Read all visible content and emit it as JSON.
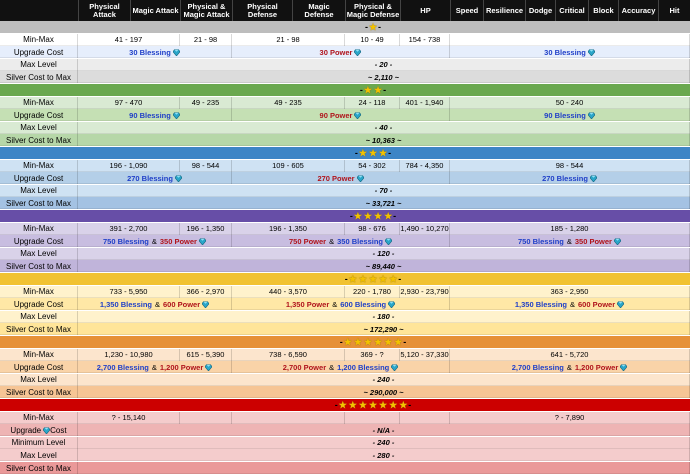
{
  "header": {
    "blank": "",
    "columns": [
      "Physical Attack",
      "Magic Attack",
      "Physical & Magic Attack",
      "Physical Defense",
      "Magic Defense",
      "Physical & Magic Defense",
      "HP",
      "Speed",
      "Resilience",
      "Dodge",
      "Critical",
      "Block",
      "Accuracy",
      "Hit"
    ]
  },
  "labels": {
    "min_max": "Min-Max",
    "upgrade_cost": "Upgrade Cost",
    "max_level": "Max Level",
    "silver_cost": "Silver Cost to Max",
    "minimum_level": "Minimum Level",
    "upgrade": "Upgrade",
    "cost": "Cost"
  },
  "colors": {
    "gray": "#bdbdbd",
    "green": "#6aa84f",
    "blue": "#3d85c6",
    "purple": "#674ea7",
    "gold": "#f1c232",
    "orange": "#e69138",
    "red": "#cc0000"
  },
  "tiers": [
    {
      "stars": 1,
      "left": "-",
      "right": "-",
      "min_max": [
        "41 - 197",
        "21 - 98",
        "21 - 98",
        "10 - 49",
        "154 - 738"
      ],
      "upgrade": [
        "30 Blessing",
        "30 Power",
        "30 Blessing"
      ],
      "max_level": "- 20 -",
      "silver": "~ 2,110 ~"
    },
    {
      "stars": 2,
      "left": "-",
      "right": "-",
      "min_max": [
        "97 - 470",
        "49 - 235",
        "49 - 235",
        "24 - 118",
        "401 - 1,940",
        "50 - 240"
      ],
      "upgrade": [
        "90 Blessing",
        "90 Power",
        "90 Blessing"
      ],
      "max_level": "- 40 -",
      "silver": "~ 10,363 ~"
    },
    {
      "stars": 3,
      "left": "-",
      "right": "-",
      "min_max": [
        "196 - 1,090",
        "98 - 544",
        "109 - 605",
        "54 - 302",
        "784 - 4,350",
        "98 - 544"
      ],
      "upgrade": [
        "270 Blessing",
        "270 Power",
        "270 Blessing"
      ],
      "max_level": "- 70 -",
      "silver": "~ 33,721 ~"
    },
    {
      "stars": 4,
      "left": "-",
      "right": "-",
      "min_max": [
        "391 - 2,700",
        "196 - 1,350",
        "196 - 1,350",
        "98 - 676",
        "1,490 - 10,270",
        "185 - 1,280"
      ],
      "upgrade": [
        [
          "750 Blessing",
          "&",
          "350 Power"
        ],
        [
          "750 Power",
          "&",
          "350 Blessing"
        ],
        [
          "750 Blessing",
          "&",
          "350 Power"
        ]
      ],
      "max_level": "- 120 -",
      "silver": "~ 89,440 ~"
    },
    {
      "stars": 5,
      "left": "-",
      "right": "-",
      "min_max": [
        "733 - 5,950",
        "366 - 2,970",
        "440 - 3,570",
        "220 - 1,780",
        "2,930 - 23,790",
        "363 - 2,950"
      ],
      "upgrade": [
        [
          "1,350 Blessing",
          "&",
          "600 Power"
        ],
        [
          "1,350 Power",
          "&",
          "600 Blessing"
        ],
        [
          "1,350 Blessing",
          "&",
          "600 Power"
        ]
      ],
      "max_level": "- 180 -",
      "silver": "~ 172,290 ~"
    },
    {
      "stars": 6,
      "left": "-",
      "right": "-",
      "min_max": [
        "1,230 - 10,980",
        "615 - 5,390",
        "738 - 6,590",
        "369 - ?",
        "5,120 - 37,330",
        "641 - 5,720"
      ],
      "upgrade": [
        [
          "2,700 Blessing",
          "&",
          "1,200 Power"
        ],
        [
          "2,700 Power",
          "&",
          "1,200 Blessing"
        ],
        [
          "2,700 Blessing",
          "&",
          "1,200 Power"
        ]
      ],
      "max_level": "- 240 -",
      "silver": "~ 290,000 ~"
    },
    {
      "stars": 7,
      "left": "-",
      "right": "-",
      "min_max": [
        "? - 15,140",
        "? - 7,890"
      ],
      "upgrade_cost": "- N/A -",
      "minimum_level": "- 240 -",
      "max_level": "- 280 -",
      "silver": ""
    }
  ]
}
